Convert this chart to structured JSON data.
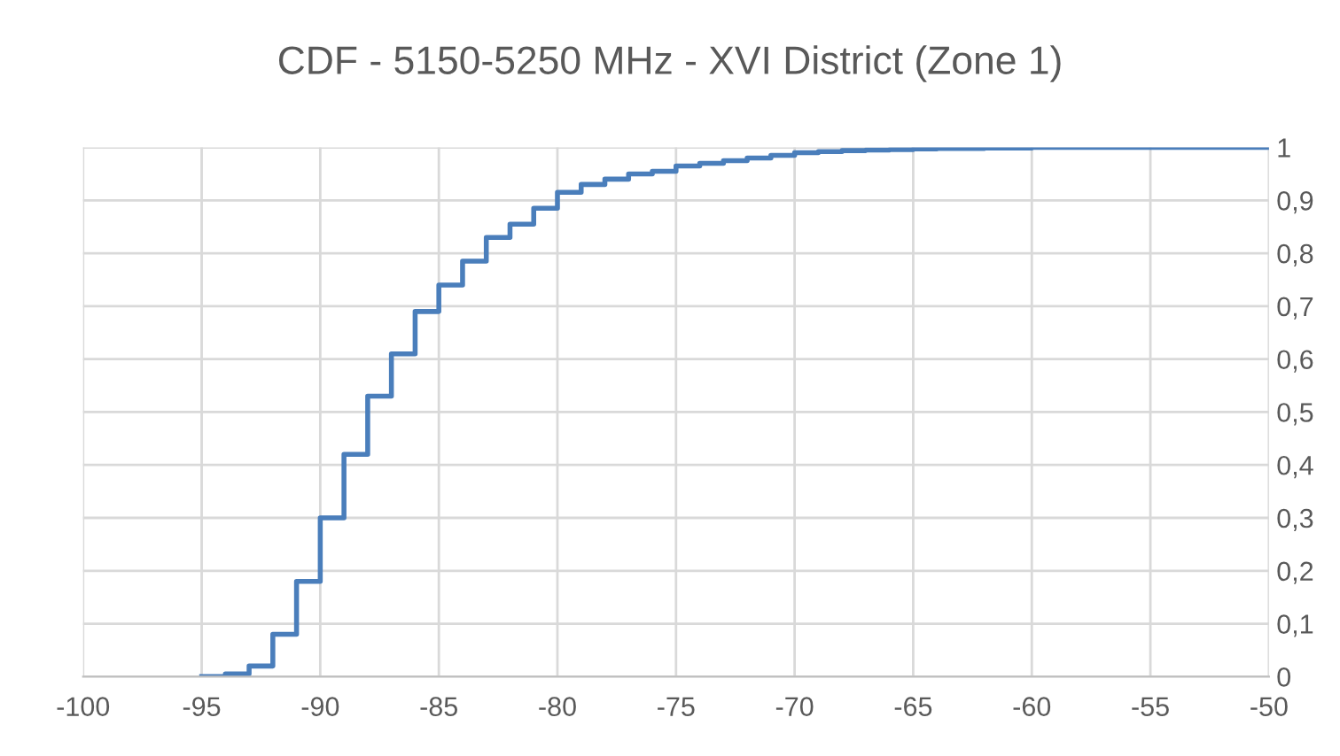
{
  "chart_data": {
    "type": "step",
    "title": "CDF - 5150-5250 MHz - XVI District (Zone 1)",
    "x": [
      -95,
      -94,
      -93,
      -92,
      -91,
      -90,
      -89,
      -88,
      -87,
      -86,
      -85,
      -84,
      -83,
      -82,
      -81,
      -80,
      -79,
      -78,
      -77,
      -76,
      -75,
      -74,
      -73,
      -72,
      -71,
      -70,
      -69,
      -68,
      -67,
      -66,
      -65,
      -64,
      -63,
      -62,
      -61,
      -60,
      -50
    ],
    "series": [
      {
        "color": "#4a7ebb",
        "values": [
          0,
          0.005,
          0.02,
          0.08,
          0.18,
          0.3,
          0.42,
          0.53,
          0.61,
          0.69,
          0.74,
          0.785,
          0.83,
          0.855,
          0.885,
          0.915,
          0.93,
          0.94,
          0.95,
          0.955,
          0.965,
          0.97,
          0.975,
          0.98,
          0.985,
          0.99,
          0.992,
          0.994,
          0.995,
          0.996,
          0.997,
          0.998,
          0.998,
          0.999,
          0.999,
          1,
          1
        ]
      }
    ],
    "xlim": [
      -100,
      -50
    ],
    "xticks": [
      -100,
      -95,
      -90,
      -85,
      -80,
      -75,
      -70,
      -65,
      -60,
      -55,
      -50
    ],
    "ylim": [
      0,
      1
    ],
    "yticks": [
      0,
      {
        "value": 0.1,
        "label": "0,1"
      },
      {
        "value": 0.2,
        "label": "0,2"
      },
      {
        "value": 0.3,
        "label": "0,3"
      },
      {
        "value": 0.4,
        "label": "0,4"
      },
      {
        "value": 0.5,
        "label": "0,5"
      },
      {
        "value": 0.6,
        "label": "0,6"
      },
      {
        "value": 0.7,
        "label": "0,7"
      },
      {
        "value": 0.8,
        "label": "0,8"
      },
      {
        "value": 0.9,
        "label": "0,9"
      },
      1
    ],
    "grid": true,
    "legend": false
  }
}
